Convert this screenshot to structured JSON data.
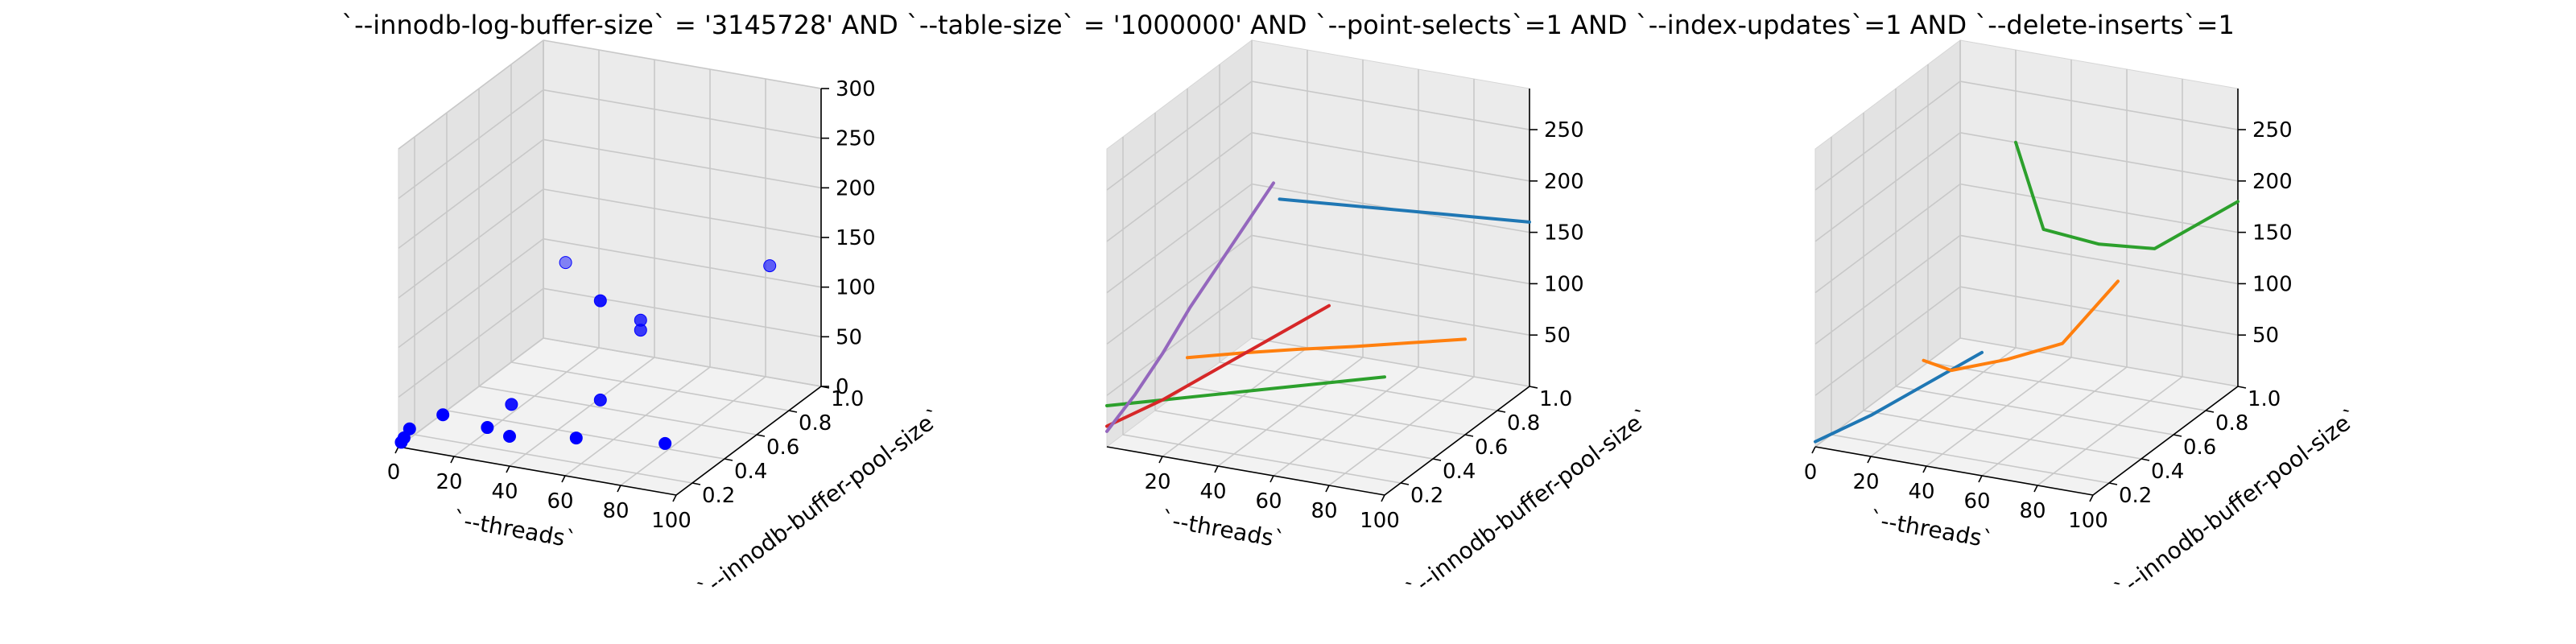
{
  "figure": {
    "title": "`--innodb-log-buffer-size` = '3145728' AND `--table-size` = '1000000'  AND `--point-selects`=1 AND `--index-updates`=1 AND `--delete-inserts`=1"
  },
  "chart_data": [
    {
      "type": "scatter",
      "panel": "left",
      "xlabel": "`--threads`",
      "ylabel": "`--innodb-buffer-pool-size`",
      "zlabel": "",
      "xlim": [
        0,
        100
      ],
      "ylim": [
        0.1,
        1.0
      ],
      "zlim": [
        0,
        300
      ],
      "xticks": [
        0,
        20,
        40,
        60,
        80,
        100
      ],
      "yticks": [
        0.2,
        0.4,
        0.6,
        0.8,
        1.0
      ],
      "zticks": [
        0,
        50,
        100,
        150,
        200,
        250,
        300
      ],
      "grid": true,
      "points": [
        {
          "x": 1,
          "y": 0.1,
          "z": 5
        },
        {
          "x": 2,
          "y": 0.1,
          "z": 10
        },
        {
          "x": 4,
          "y": 0.1,
          "z": 20
        },
        {
          "x": 16,
          "y": 0.1,
          "z": 40
        },
        {
          "x": 32,
          "y": 0.1,
          "z": 35
        },
        {
          "x": 32,
          "y": 0.25,
          "z": 40
        },
        {
          "x": 40,
          "y": 0.1,
          "z": 30
        },
        {
          "x": 64,
          "y": 0.1,
          "z": 40
        },
        {
          "x": 64,
          "y": 0.25,
          "z": 160
        },
        {
          "x": 64,
          "y": 0.5,
          "z": 100
        },
        {
          "x": 64,
          "y": 0.5,
          "z": 110
        },
        {
          "x": 64,
          "y": 0.25,
          "z": 60
        },
        {
          "x": 96,
          "y": 0.1,
          "z": 50
        },
        {
          "x": 8,
          "y": 1.0,
          "z": 80
        },
        {
          "x": 96,
          "y": 0.75,
          "z": 150
        }
      ],
      "color": "#0000ff"
    },
    {
      "type": "line",
      "panel": "middle",
      "xlabel": "`--threads`",
      "ylabel": "`--innodb-buffer-pool-size`",
      "zlabel": "",
      "xlim": [
        0,
        100
      ],
      "ylim": [
        0.1,
        1.0
      ],
      "zlim": [
        0,
        290
      ],
      "xticks": [
        20,
        40,
        60,
        80,
        100
      ],
      "yticks": [
        0.2,
        0.4,
        0.6,
        0.8,
        1.0
      ],
      "zticks": [
        50,
        100,
        150,
        200,
        250
      ],
      "grid": true,
      "series": [
        {
          "color": "#1f77b4",
          "x": [
            10,
            100
          ],
          "y": [
            1.0,
            1.0
          ],
          "z": [
            140,
            160
          ]
        },
        {
          "color": "#ff7f0e",
          "x": [
            0,
            20,
            40,
            60,
            80,
            100
          ],
          "y": [
            0.6,
            0.6,
            0.6,
            0.6,
            0.6,
            0.6
          ],
          "z": [
            28,
            42,
            55,
            67,
            80,
            93
          ]
        },
        {
          "color": "#2ca02c",
          "x": [
            0,
            20,
            40,
            60,
            80,
            100
          ],
          "y": [
            0.1,
            0.1,
            0.1,
            0.1,
            0.1,
            0.1
          ],
          "z": [
            40,
            55,
            70,
            85,
            100,
            115
          ]
        },
        {
          "color": "#d62728",
          "x": [
            0,
            20,
            40,
            60,
            80
          ],
          "y": [
            0.1,
            0.1,
            0.1,
            0.1,
            0.1
          ],
          "z": [
            20,
            55,
            95,
            135,
            175
          ]
        },
        {
          "color": "#9467bd",
          "x": [
            0,
            10,
            20,
            30,
            40,
            50,
            60
          ],
          "y": [
            0.1,
            0.1,
            0.1,
            0.1,
            0.1,
            0.1,
            0.1
          ],
          "z": [
            15,
            55,
            100,
            150,
            195,
            240,
            285
          ]
        }
      ]
    },
    {
      "type": "line",
      "panel": "right",
      "xlabel": "`--threads`",
      "ylabel": "`--innodb-buffer-pool-size`",
      "zlabel": "",
      "xlim": [
        0,
        100
      ],
      "ylim": [
        0.1,
        1.0
      ],
      "zlim": [
        0,
        290
      ],
      "xticks": [
        0,
        20,
        40,
        60,
        80,
        100
      ],
      "yticks": [
        0.2,
        0.4,
        0.6,
        0.8,
        1.0
      ],
      "zticks": [
        50,
        100,
        150,
        200,
        250
      ],
      "grid": true,
      "series": [
        {
          "color": "#1f77b4",
          "x": [
            0,
            20,
            40,
            60
          ],
          "y": [
            0.1,
            0.1,
            0.1,
            0.1
          ],
          "z": [
            5,
            40,
            80,
            120
          ]
        },
        {
          "color": "#ff7f0e",
          "x": [
            10,
            20,
            40,
            60,
            80
          ],
          "y": [
            0.6,
            0.6,
            0.6,
            0.6,
            0.6
          ],
          "z": [
            30,
            25,
            45,
            70,
            140
          ]
        },
        {
          "color": "#2ca02c",
          "x": [
            20,
            30,
            50,
            70,
            100
          ],
          "y": [
            1.0,
            1.0,
            1.0,
            1.0,
            1.0
          ],
          "z": [
            200,
            120,
            115,
            120,
            180
          ]
        }
      ]
    }
  ]
}
